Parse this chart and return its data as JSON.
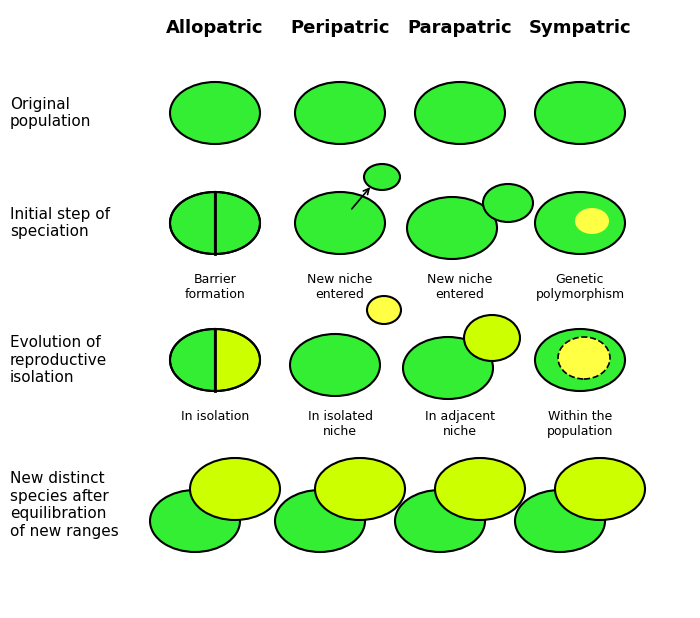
{
  "title_row": [
    "Allopatric",
    "Peripatric",
    "Parapatric",
    "Sympatric"
  ],
  "row_labels": [
    "Original\npopulation",
    "Initial step of\nspeciation",
    "Evolution of\nreproductive\nisolation",
    "New distinct\nspecies after\nequilibration\nof new ranges"
  ],
  "col_labels_r1": [
    "Barrier\nformation",
    "New niche\nentered",
    "New niche\nentered",
    "Genetic\npolymorphism"
  ],
  "col_labels_r2": [
    "In isolation",
    "In isolated\nniche",
    "In adjacent\nniche",
    "Within the\npopulation"
  ],
  "green": "#33ee33",
  "yellow_green": "#ccff00",
  "yellow": "#ffff44",
  "black": "#000000",
  "bg_color": "#ffffff",
  "fig_w": 7.0,
  "fig_h": 6.18,
  "dpi": 100
}
